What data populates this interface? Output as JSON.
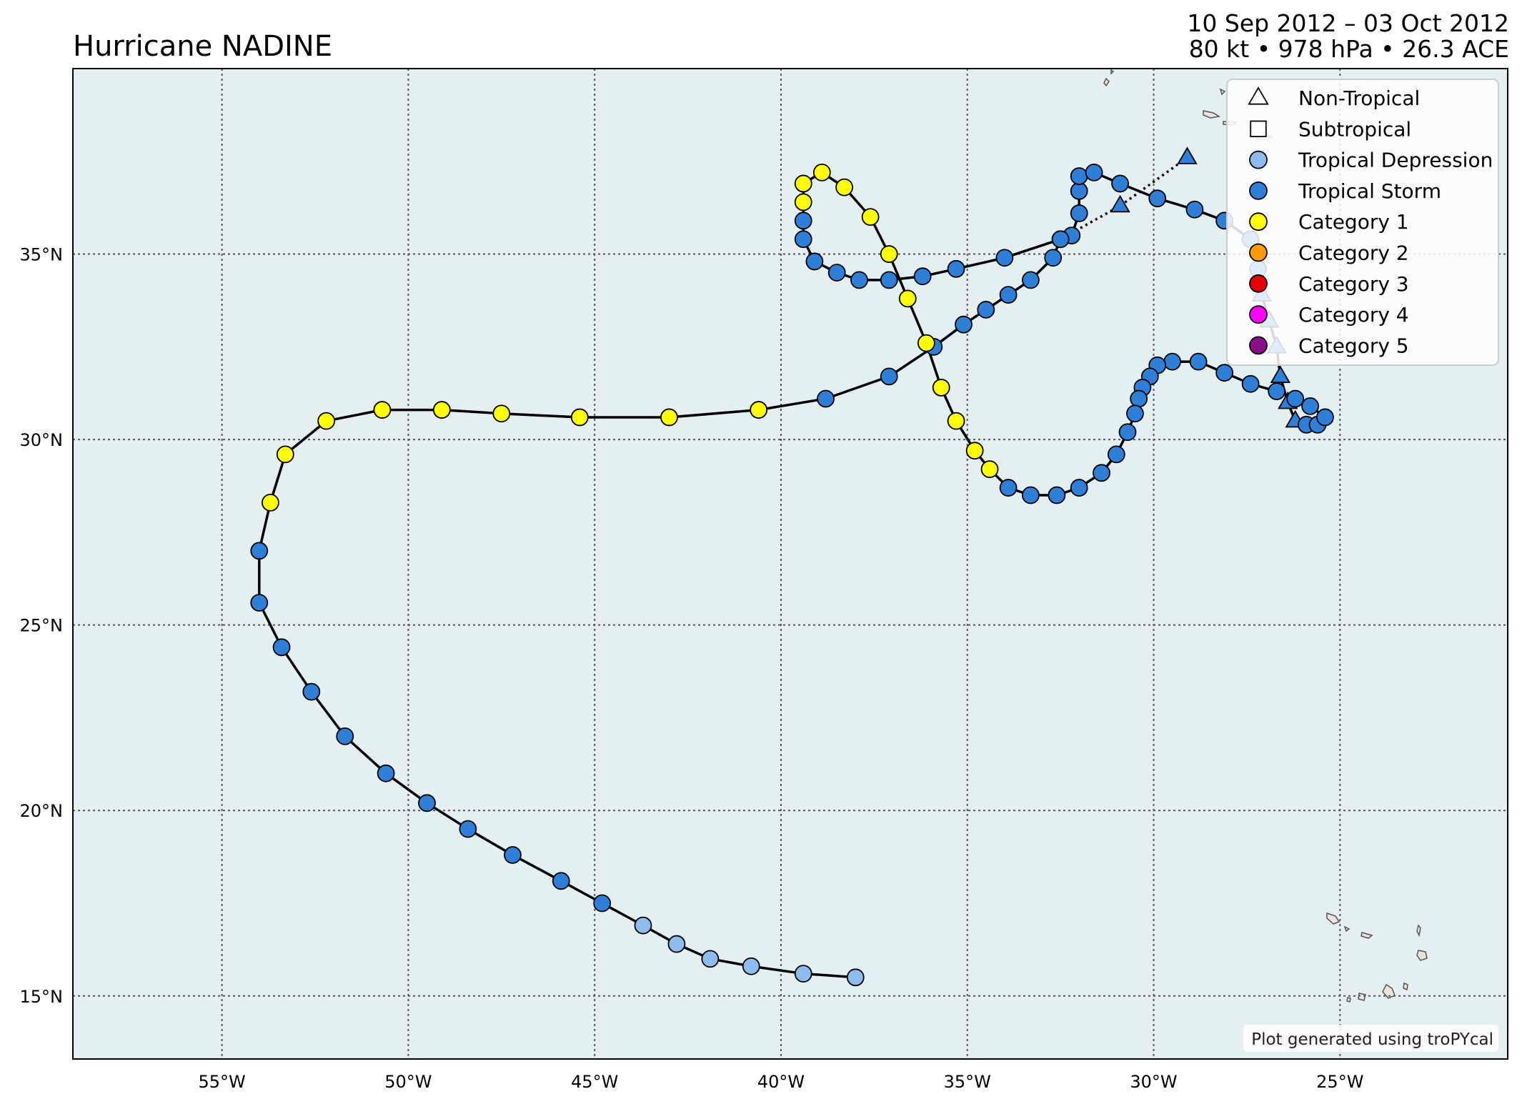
{
  "title": "Hurricane NADINE",
  "date_range": "10 Sep 2012 – 03 Oct 2012",
  "stats": "80 kt • 978 hPa • 26.3 ACE",
  "credit": "Plot generated using troPYcal",
  "colors": {
    "ocean": "#e3eff1",
    "land": "#ece4da",
    "track": "#000000",
    "Non-Tropical": "#2e7fd8",
    "Subtropical": "#2e7fd8",
    "Tropical Depression": "#8fbcee",
    "Tropical Storm": "#2e7fd8",
    "Category 1": "#ffff00",
    "Category 2": "#ff9a00",
    "Category 3": "#e60000",
    "Category 4": "#ff00ff",
    "Category 5": "#8a0e8a"
  },
  "legend": [
    {
      "label": "Non-Tropical",
      "marker": "triangle",
      "color": "#ffffff"
    },
    {
      "label": "Subtropical",
      "marker": "square",
      "color": "#ffffff"
    },
    {
      "label": "Tropical Depression",
      "marker": "circle",
      "color": "#8fbcee"
    },
    {
      "label": "Tropical Storm",
      "marker": "circle",
      "color": "#2e7fd8"
    },
    {
      "label": "Category 1",
      "marker": "circle",
      "color": "#ffff00"
    },
    {
      "label": "Category 2",
      "marker": "circle",
      "color": "#ff9a00"
    },
    {
      "label": "Category 3",
      "marker": "circle",
      "color": "#e60000"
    },
    {
      "label": "Category 4",
      "marker": "circle",
      "color": "#ff00ff"
    },
    {
      "label": "Category 5",
      "marker": "circle",
      "color": "#8a0e8a"
    }
  ],
  "map": {
    "lon_range": [
      -59,
      -20.5
    ],
    "lat_range": [
      13.3,
      40
    ],
    "lon_ticks": [
      {
        "value": -55,
        "label": "55°W"
      },
      {
        "value": -50,
        "label": "50°W"
      },
      {
        "value": -45,
        "label": "45°W"
      },
      {
        "value": -40,
        "label": "40°W"
      },
      {
        "value": -35,
        "label": "35°W"
      },
      {
        "value": -30,
        "label": "30°W"
      },
      {
        "value": -25,
        "label": "25°W"
      }
    ],
    "lat_ticks": [
      {
        "value": 15,
        "label": "15°N"
      },
      {
        "value": 20,
        "label": "20°N"
      },
      {
        "value": 25,
        "label": "25°N"
      },
      {
        "value": 30,
        "label": "30°N"
      },
      {
        "value": 35,
        "label": "35°N"
      }
    ],
    "grid": true
  },
  "track": [
    {
      "lon": -38.0,
      "lat": 15.5,
      "type": "Tropical Depression"
    },
    {
      "lon": -39.4,
      "lat": 15.6,
      "type": "Tropical Depression"
    },
    {
      "lon": -40.8,
      "lat": 15.8,
      "type": "Tropical Depression"
    },
    {
      "lon": -41.9,
      "lat": 16.0,
      "type": "Tropical Depression"
    },
    {
      "lon": -42.8,
      "lat": 16.4,
      "type": "Tropical Depression"
    },
    {
      "lon": -43.7,
      "lat": 16.9,
      "type": "Tropical Depression"
    },
    {
      "lon": -44.8,
      "lat": 17.5,
      "type": "Tropical Storm"
    },
    {
      "lon": -45.9,
      "lat": 18.1,
      "type": "Tropical Storm"
    },
    {
      "lon": -47.2,
      "lat": 18.8,
      "type": "Tropical Storm"
    },
    {
      "lon": -48.4,
      "lat": 19.5,
      "type": "Tropical Storm"
    },
    {
      "lon": -49.5,
      "lat": 20.2,
      "type": "Tropical Storm"
    },
    {
      "lon": -50.6,
      "lat": 21.0,
      "type": "Tropical Storm"
    },
    {
      "lon": -51.7,
      "lat": 22.0,
      "type": "Tropical Storm"
    },
    {
      "lon": -52.6,
      "lat": 23.2,
      "type": "Tropical Storm"
    },
    {
      "lon": -53.4,
      "lat": 24.4,
      "type": "Tropical Storm"
    },
    {
      "lon": -54.0,
      "lat": 25.6,
      "type": "Tropical Storm"
    },
    {
      "lon": -54.0,
      "lat": 27.0,
      "type": "Tropical Storm"
    },
    {
      "lon": -53.7,
      "lat": 28.3,
      "type": "Category 1"
    },
    {
      "lon": -53.3,
      "lat": 29.6,
      "type": "Category 1"
    },
    {
      "lon": -52.2,
      "lat": 30.5,
      "type": "Category 1"
    },
    {
      "lon": -50.7,
      "lat": 30.8,
      "type": "Category 1"
    },
    {
      "lon": -49.1,
      "lat": 30.8,
      "type": "Category 1"
    },
    {
      "lon": -47.5,
      "lat": 30.7,
      "type": "Category 1"
    },
    {
      "lon": -45.4,
      "lat": 30.6,
      "type": "Category 1"
    },
    {
      "lon": -43.0,
      "lat": 30.6,
      "type": "Category 1"
    },
    {
      "lon": -40.6,
      "lat": 30.8,
      "type": "Category 1"
    },
    {
      "lon": -38.8,
      "lat": 31.1,
      "type": "Tropical Storm"
    },
    {
      "lon": -37.1,
      "lat": 31.7,
      "type": "Tropical Storm"
    },
    {
      "lon": -35.9,
      "lat": 32.5,
      "type": "Tropical Storm"
    },
    {
      "lon": -35.1,
      "lat": 33.1,
      "type": "Tropical Storm"
    },
    {
      "lon": -34.5,
      "lat": 33.5,
      "type": "Tropical Storm"
    },
    {
      "lon": -33.9,
      "lat": 33.9,
      "type": "Tropical Storm"
    },
    {
      "lon": -33.3,
      "lat": 34.3,
      "type": "Tropical Storm"
    },
    {
      "lon": -32.7,
      "lat": 34.9,
      "type": "Tropical Storm"
    },
    {
      "lon": -32.5,
      "lat": 35.4,
      "type": "Tropical Storm"
    },
    {
      "lon": -32.2,
      "lat": 35.5,
      "type": "Tropical Storm"
    },
    {
      "lon": -32.0,
      "lat": 36.1,
      "type": "Tropical Storm"
    },
    {
      "lon": -32.0,
      "lat": 36.7,
      "type": "Tropical Storm"
    },
    {
      "lon": -32.0,
      "lat": 37.1,
      "type": "Tropical Storm"
    },
    {
      "lon": -31.6,
      "lat": 37.2,
      "type": "Tropical Storm"
    },
    {
      "lon": -30.9,
      "lat": 36.9,
      "type": "Tropical Storm"
    },
    {
      "lon": -29.9,
      "lat": 36.5,
      "type": "Tropical Storm"
    },
    {
      "lon": -28.9,
      "lat": 36.2,
      "type": "Tropical Storm"
    },
    {
      "lon": -28.1,
      "lat": 35.9,
      "type": "Tropical Storm"
    },
    {
      "lon": -27.4,
      "lat": 35.4,
      "type": "Tropical Storm"
    },
    {
      "lon": -27.2,
      "lat": 34.6,
      "type": "Tropical Storm"
    },
    {
      "lon": -27.1,
      "lat": 33.9,
      "type": "Non-Tropical"
    },
    {
      "lon": -26.9,
      "lat": 33.2,
      "type": "Non-Tropical"
    },
    {
      "lon": -26.7,
      "lat": 32.5,
      "type": "Non-Tropical"
    },
    {
      "lon": -26.6,
      "lat": 31.7,
      "type": "Non-Tropical"
    },
    {
      "lon": -26.4,
      "lat": 31.0,
      "type": "Non-Tropical"
    },
    {
      "lon": -26.2,
      "lat": 30.5,
      "type": "Non-Tropical"
    },
    {
      "lon": -25.9,
      "lat": 30.4,
      "type": "Tropical Storm"
    },
    {
      "lon": -25.6,
      "lat": 30.4,
      "type": "Tropical Storm"
    },
    {
      "lon": -25.4,
      "lat": 30.6,
      "type": "Tropical Storm"
    },
    {
      "lon": -25.8,
      "lat": 30.9,
      "type": "Tropical Storm"
    },
    {
      "lon": -26.2,
      "lat": 31.1,
      "type": "Tropical Storm"
    },
    {
      "lon": -26.7,
      "lat": 31.3,
      "type": "Tropical Storm"
    },
    {
      "lon": -27.4,
      "lat": 31.5,
      "type": "Tropical Storm"
    },
    {
      "lon": -28.1,
      "lat": 31.8,
      "type": "Tropical Storm"
    },
    {
      "lon": -28.8,
      "lat": 32.1,
      "type": "Tropical Storm"
    },
    {
      "lon": -29.5,
      "lat": 32.1,
      "type": "Tropical Storm"
    },
    {
      "lon": -29.9,
      "lat": 32.0,
      "type": "Tropical Storm"
    },
    {
      "lon": -30.1,
      "lat": 31.7,
      "type": "Tropical Storm"
    },
    {
      "lon": -30.3,
      "lat": 31.4,
      "type": "Tropical Storm"
    },
    {
      "lon": -30.4,
      "lat": 31.1,
      "type": "Tropical Storm"
    },
    {
      "lon": -30.5,
      "lat": 30.7,
      "type": "Tropical Storm"
    },
    {
      "lon": -30.7,
      "lat": 30.2,
      "type": "Tropical Storm"
    },
    {
      "lon": -31.0,
      "lat": 29.6,
      "type": "Tropical Storm"
    },
    {
      "lon": -31.4,
      "lat": 29.1,
      "type": "Tropical Storm"
    },
    {
      "lon": -32.0,
      "lat": 28.7,
      "type": "Tropical Storm"
    },
    {
      "lon": -32.6,
      "lat": 28.5,
      "type": "Tropical Storm"
    },
    {
      "lon": -33.3,
      "lat": 28.5,
      "type": "Tropical Storm"
    },
    {
      "lon": -33.9,
      "lat": 28.7,
      "type": "Tropical Storm"
    },
    {
      "lon": -34.4,
      "lat": 29.2,
      "type": "Category 1"
    },
    {
      "lon": -34.8,
      "lat": 29.7,
      "type": "Category 1"
    },
    {
      "lon": -35.3,
      "lat": 30.5,
      "type": "Category 1"
    },
    {
      "lon": -35.7,
      "lat": 31.4,
      "type": "Category 1"
    },
    {
      "lon": -36.1,
      "lat": 32.6,
      "type": "Category 1"
    },
    {
      "lon": -36.6,
      "lat": 33.8,
      "type": "Category 1"
    },
    {
      "lon": -37.1,
      "lat": 35.0,
      "type": "Category 1"
    },
    {
      "lon": -37.6,
      "lat": 36.0,
      "type": "Category 1"
    },
    {
      "lon": -38.3,
      "lat": 36.8,
      "type": "Category 1"
    },
    {
      "lon": -38.9,
      "lat": 37.2,
      "type": "Category 1"
    },
    {
      "lon": -39.4,
      "lat": 36.9,
      "type": "Category 1"
    },
    {
      "lon": -39.4,
      "lat": 36.4,
      "type": "Category 1"
    },
    {
      "lon": -39.4,
      "lat": 35.9,
      "type": "Tropical Storm"
    },
    {
      "lon": -39.4,
      "lat": 35.4,
      "type": "Tropical Storm"
    },
    {
      "lon": -39.1,
      "lat": 34.8,
      "type": "Tropical Storm"
    },
    {
      "lon": -38.5,
      "lat": 34.5,
      "type": "Tropical Storm"
    },
    {
      "lon": -37.9,
      "lat": 34.3,
      "type": "Tropical Storm"
    },
    {
      "lon": -37.1,
      "lat": 34.3,
      "type": "Tropical Storm"
    },
    {
      "lon": -36.2,
      "lat": 34.4,
      "type": "Tropical Storm"
    },
    {
      "lon": -35.3,
      "lat": 34.6,
      "type": "Tropical Storm"
    },
    {
      "lon": -34.0,
      "lat": 34.9,
      "type": "Tropical Storm"
    },
    {
      "lon": -32.5,
      "lat": 35.4,
      "type": "Tropical Storm"
    }
  ],
  "extratropical_tail": [
    {
      "lon": -32.5,
      "lat": 35.4,
      "type": "Tropical Storm"
    },
    {
      "lon": -30.9,
      "lat": 36.3,
      "type": "Non-Tropical"
    },
    {
      "lon": -29.1,
      "lat": 37.6,
      "type": "Non-Tropical"
    }
  ]
}
